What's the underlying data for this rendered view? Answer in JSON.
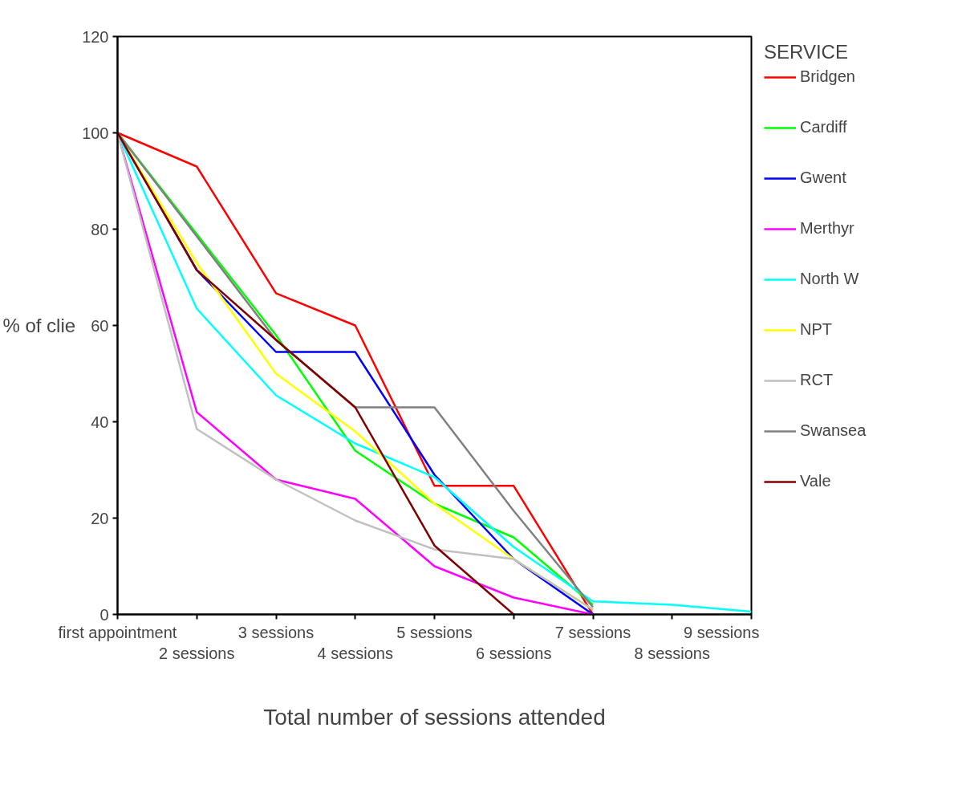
{
  "chart_data": {
    "type": "line",
    "xlabel": "Total number of sessions attended",
    "ylabel": "% of clie",
    "legend_title": "SERVICE",
    "legend": "right",
    "grid": false,
    "marker": "none",
    "line_style": "solid",
    "categories": [
      "first appointment",
      "2 sessions",
      "3 sessions",
      "4 sessions",
      "5 sessions",
      "6 sessions",
      "7 sessions",
      "8 sessions",
      "9 sessions"
    ],
    "ylim": [
      0,
      120
    ],
    "yticks": [
      0,
      20,
      40,
      60,
      80,
      100,
      120
    ],
    "series": [
      {
        "name": "Bridgen",
        "color": "#ff0000",
        "values": [
          100,
          93,
          66.7,
          60,
          26.7,
          26.7,
          0,
          null,
          null
        ]
      },
      {
        "name": "Cardiff",
        "color": "#00ff00",
        "values": [
          100,
          79,
          58,
          34,
          23,
          16,
          2,
          null,
          null
        ]
      },
      {
        "name": "Gwent",
        "color": "#0000ff",
        "values": [
          100,
          71.5,
          54.5,
          54.5,
          29,
          11.5,
          0,
          null,
          null
        ]
      },
      {
        "name": "Merthyr",
        "color": "#ff00ff",
        "values": [
          100,
          42,
          28,
          24,
          10,
          3.5,
          0,
          null,
          null
        ]
      },
      {
        "name": "North W",
        "color": "#00ffff",
        "values": [
          100,
          63.5,
          45.5,
          35.5,
          28.5,
          14,
          2.7,
          2,
          0.6
        ]
      },
      {
        "name": "NPT",
        "color": "#ffff00",
        "values": [
          100,
          73,
          50,
          38,
          23,
          11.5,
          1,
          null,
          null
        ]
      },
      {
        "name": "RCT",
        "color": "#c0c0c0",
        "values": [
          100,
          38.5,
          28,
          19.5,
          13.5,
          11.5,
          1,
          null,
          null
        ]
      },
      {
        "name": "Swansea",
        "color": "#808080",
        "values": [
          100,
          78.5,
          57,
          43,
          43,
          21.5,
          1.5,
          null,
          null
        ]
      },
      {
        "name": "Vale",
        "color": "#800000",
        "values": [
          100,
          71.5,
          57,
          43,
          14.3,
          0,
          null,
          null,
          null
        ]
      }
    ]
  }
}
